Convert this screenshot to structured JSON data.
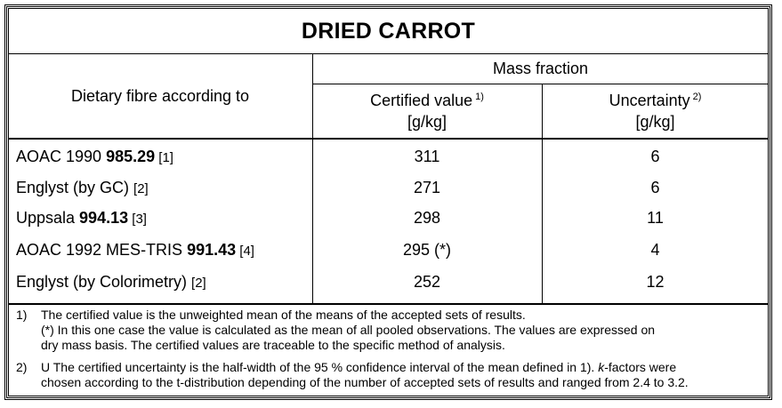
{
  "title": "DRIED CARROT",
  "header": {
    "col1": "Dietary fibre according to",
    "mass_fraction": "Mass fraction",
    "certified_label": "Certified value",
    "certified_sup": "1)",
    "certified_unit": "[g/kg]",
    "uncertainty_label": "Uncertainty",
    "uncertainty_sup": "2)",
    "uncertainty_unit": "[g/kg]"
  },
  "rows": [
    {
      "pre": "AOAC 1990 ",
      "bold": "985.29",
      "ref": " [1]",
      "value": "311",
      "uncertainty": "6"
    },
    {
      "pre": "Englyst (by GC) ",
      "bold": "",
      "ref": "[2]",
      "value": "271",
      "uncertainty": "6"
    },
    {
      "pre": "Uppsala ",
      "bold": "994.13",
      "ref": " [3]",
      "value": "298",
      "uncertainty": "11"
    },
    {
      "pre": "AOAC 1992 MES-TRIS ",
      "bold": "991.43",
      "ref": " [4]",
      "value": "295 (*)",
      "uncertainty": "4"
    },
    {
      "pre": "Englyst (by Colorimetry) ",
      "bold": "",
      "ref": "[2]",
      "value": "252",
      "uncertainty": "12"
    }
  ],
  "footnotes": {
    "fn1_num": "1)",
    "fn1_line1": "The certified value is the unweighted mean of the means of the accepted sets of results.",
    "fn1_line2": "(*) In this one case the value is calculated as the mean of all pooled observations. The values are expressed on",
    "fn1_line3": "dry mass basis. The certified values are traceable to the specific method of analysis.",
    "fn2_num": "2)",
    "fn2_line1_a": "U The certified uncertainty is the half-width of the 95 % confidence interval of the mean defined in 1).",
    "fn2_line1_k": "k",
    "fn2_line1_b": "-factors were",
    "fn2_line2": "chosen according to the t-distribution depending of the number of accepted sets of results and ranged from 2.4 to 3.2."
  }
}
